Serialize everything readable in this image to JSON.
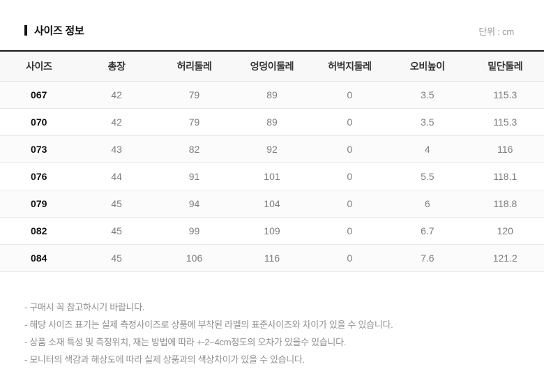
{
  "header": {
    "title": "사이즈 정보",
    "unit_label": "단위 : cm"
  },
  "table": {
    "columns": [
      "사이즈",
      "총장",
      "허리둘레",
      "엉덩이둘레",
      "허벅지둘레",
      "오비높이",
      "밑단둘레"
    ],
    "rows": [
      {
        "size": "067",
        "values": [
          "42",
          "79",
          "89",
          "0",
          "3.5",
          "115.3"
        ]
      },
      {
        "size": "070",
        "values": [
          "42",
          "79",
          "89",
          "0",
          "3.5",
          "115.3"
        ]
      },
      {
        "size": "073",
        "values": [
          "43",
          "82",
          "92",
          "0",
          "4",
          "116"
        ]
      },
      {
        "size": "076",
        "values": [
          "44",
          "91",
          "101",
          "0",
          "5.5",
          "118.1"
        ]
      },
      {
        "size": "079",
        "values": [
          "45",
          "94",
          "104",
          "0",
          "6",
          "118.8"
        ]
      },
      {
        "size": "082",
        "values": [
          "45",
          "99",
          "109",
          "0",
          "6.7",
          "120"
        ]
      },
      {
        "size": "084",
        "values": [
          "45",
          "106",
          "116",
          "0",
          "7.6",
          "121.2"
        ]
      }
    ]
  },
  "notes": [
    "- 구매시 꼭 참고하시기 바랍니다.",
    "- 해당 사이즈 표기는 실제 측정사이즈로 상품에 부착된 라벨의 표준사이즈와 차이가 있을 수 있습니다.",
    "- 상품 소재 특성 및 측정위치, 재는 방법에 따라 +-2~4cm정도의 오차가 있을수 있습니다.",
    "- 모니터의 색감과 해상도에 따라 실제 상품과의 색상차이가 있을 수 있습니다."
  ]
}
